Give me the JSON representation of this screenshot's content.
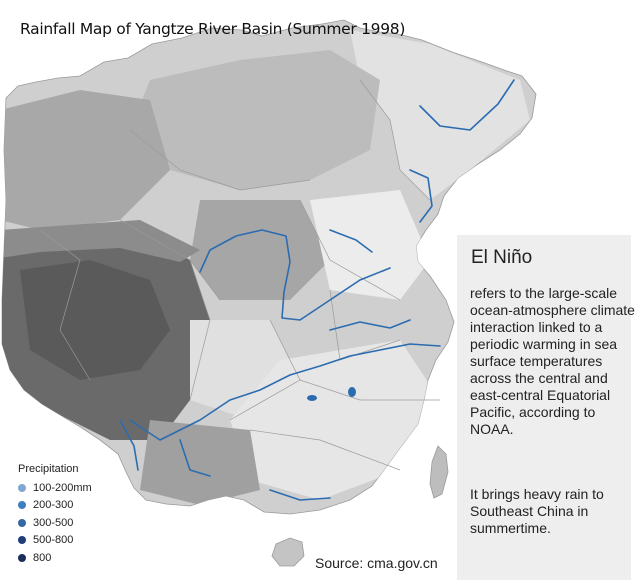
{
  "title": "Rainfall Map of Yangtze River Basin (Summer 1998)",
  "legend": {
    "title": "Precipitation",
    "items": [
      {
        "label": "100-200mm",
        "color": "#7fa7d0"
      },
      {
        "label": "200-300",
        "color": "#3f7fc0"
      },
      {
        "label": "300-500",
        "color": "#3467a5"
      },
      {
        "label": "500-800",
        "color": "#1f3f7a"
      },
      {
        "label": "800",
        "color": "#1a2f5e"
      }
    ]
  },
  "info": {
    "heading": "El Niño",
    "paragraph1": "refers to the large-scale ocean-atmosphere climate interaction linked to a periodic warming in sea surface temperatures across the central and east-central Equatorial Pacific, according to NOAA.",
    "paragraph2": "It brings heavy rain to Southeast China in summertime."
  },
  "source": "Source: cma.gov.cn",
  "colors": {
    "river": "#2b6cb0",
    "land_light": "#f0f0f0",
    "land_mid": "#c8c8c8",
    "land_dark": "#8a8a8a",
    "plateau": "#5e5e5e"
  }
}
